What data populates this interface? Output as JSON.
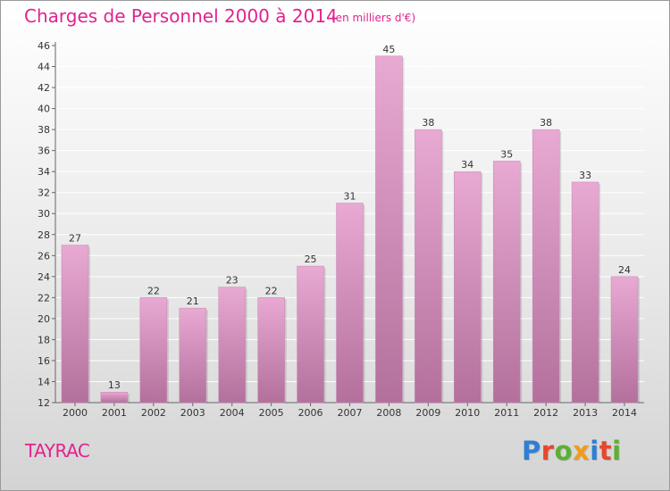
{
  "header": {
    "title": "Charges de Personnel 2000 à 2014",
    "subtitle": "(en milliers d'€)"
  },
  "footer": {
    "commune": "TAYRAC",
    "logo_letters": [
      "P",
      "r",
      "o",
      "x",
      "i",
      "t",
      "i"
    ],
    "logo_colors": [
      "#2f7fd2",
      "#e8462c",
      "#5bb031",
      "#f29a1a",
      "#2f7fd2",
      "#e8462c",
      "#5bb031"
    ]
  },
  "colors": {
    "bar_light": "#e8a9d3",
    "bar_dark": "#b3709c",
    "accent": "#e0238f"
  },
  "chart_data": {
    "type": "bar",
    "title": "Charges de Personnel 2000 à 2014",
    "subtitle": "(en milliers d'€)",
    "categories": [
      "2000",
      "2001",
      "2002",
      "2003",
      "2004",
      "2005",
      "2006",
      "2007",
      "2008",
      "2009",
      "2010",
      "2011",
      "2012",
      "2013",
      "2014"
    ],
    "values": [
      27,
      13,
      22,
      21,
      23,
      22,
      25,
      31,
      45,
      38,
      34,
      35,
      38,
      33,
      24
    ],
    "ylim": [
      12,
      46
    ],
    "yticks": [
      12,
      14,
      16,
      18,
      20,
      22,
      24,
      26,
      28,
      30,
      32,
      34,
      36,
      38,
      40,
      42,
      44,
      46
    ],
    "grid": true,
    "legend": "none"
  }
}
